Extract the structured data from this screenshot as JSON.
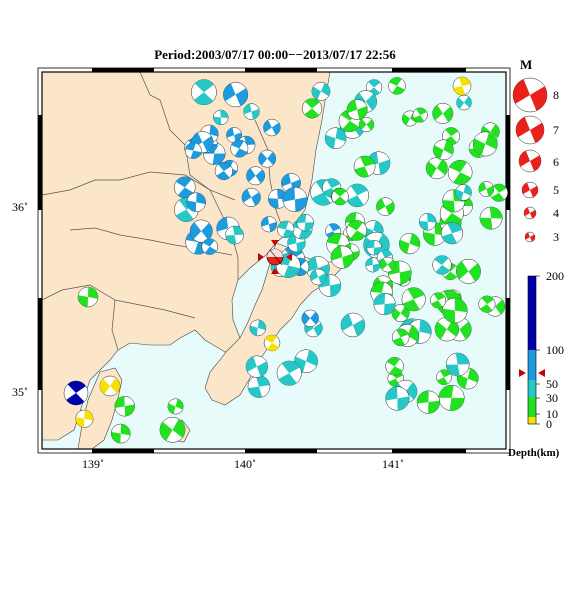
{
  "title": "Period:2003/07/17 00:00−−2013/07/17 22:56",
  "lat_labels": [
    "36˚",
    "35˚"
  ],
  "lon_labels": [
    "139˚",
    "140˚",
    "141˚"
  ],
  "magnitude_legend": {
    "heading": "M",
    "items": [
      "8",
      "7",
      "6",
      "5",
      "4",
      "3"
    ]
  },
  "depth_scale": {
    "ticks": [
      "200",
      "100",
      "50",
      "30",
      "10",
      "0"
    ],
    "label": "Depth(km)",
    "colors": {
      "deep": "#0000aa",
      "mid": "#1e9bdc",
      "light": "#27c7c7",
      "shallow": "#22e022",
      "surface": "#f5e000"
    }
  },
  "colors": {
    "land": "#fbe6c9",
    "sea": "#e7fbfb",
    "mainshock": "#e8221a",
    "border": "#000000"
  }
}
